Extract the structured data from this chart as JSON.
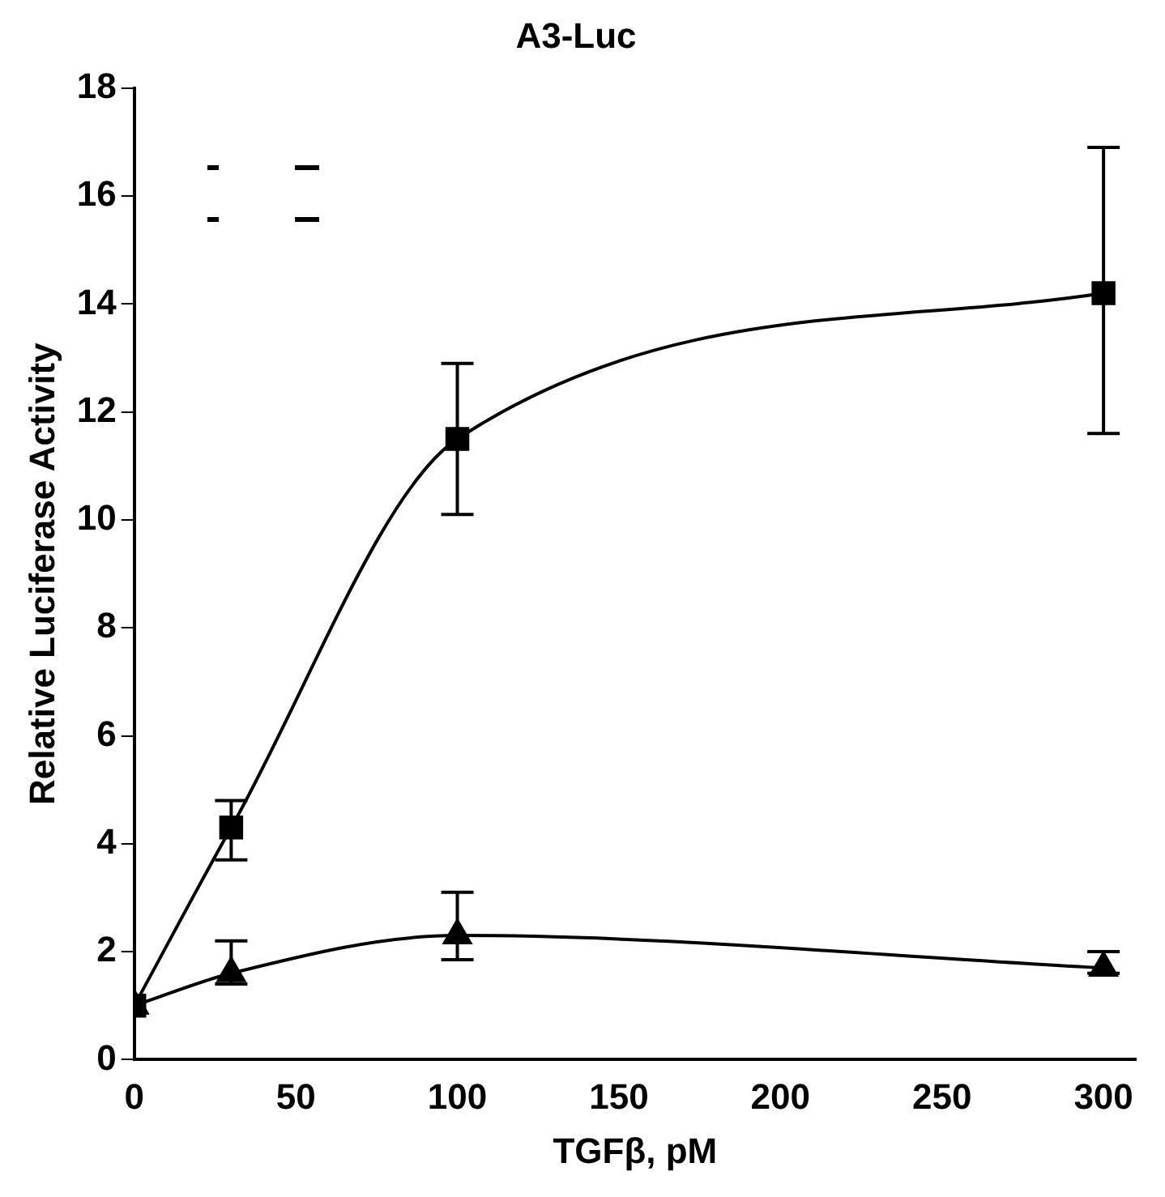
{
  "chart_data": {
    "type": "line",
    "title": "A3-Luc",
    "xlabel": "TGFβ, pM",
    "ylabel": "Relative Luciferase Activity",
    "x": [
      0,
      30,
      100,
      300
    ],
    "series": [
      {
        "color": "#000000",
        "marker": "square",
        "values": [
          1,
          4.3,
          11.5,
          14.2
        ],
        "errors": [
          null,
          [
            3.7,
            4.8
          ],
          [
            10.1,
            12.9
          ],
          [
            11.6,
            16.9
          ]
        ]
      },
      {
        "color": "#000000",
        "marker": "triangle",
        "values": [
          1,
          1.6,
          2.3,
          1.7
        ],
        "errors": [
          null,
          [
            1.4,
            2.2
          ],
          [
            1.85,
            3.1
          ],
          [
            1.6,
            2.0
          ]
        ]
      }
    ],
    "xlim": [
      0,
      310
    ],
    "xticks": [
      0,
      50,
      100,
      150,
      200,
      250,
      300
    ],
    "ylim": [
      0,
      18
    ],
    "yticks": [
      0,
      2,
      4,
      6,
      8,
      10,
      12,
      14,
      16,
      18
    ],
    "grid": false,
    "legend": false,
    "line_style": "solid"
  }
}
